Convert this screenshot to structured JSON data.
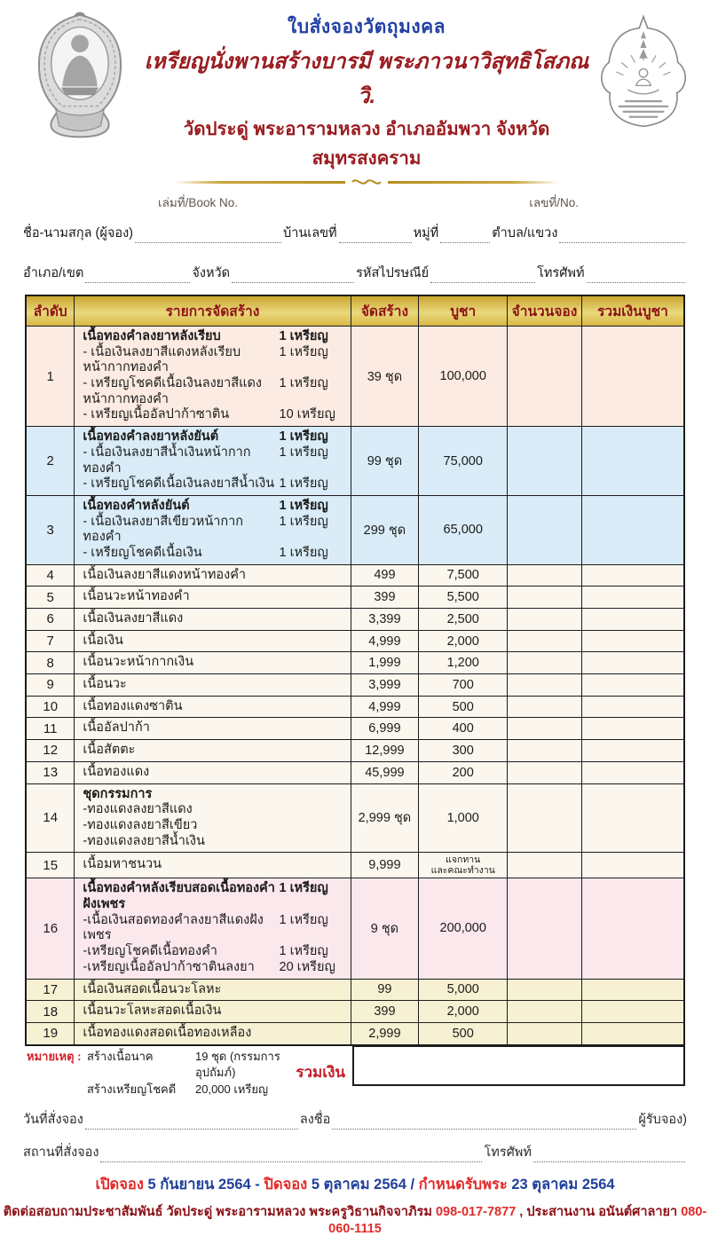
{
  "header": {
    "form_title": "ใบสั่งจองวัตถุมงคล",
    "subtitle1": "เหรียญนั่งพานสร้างบารมี พระภาวนาวิสุทธิโสภณ วิ.",
    "subtitle2": "วัดประดู่ พระอารามหลวง อำเภออัมพวา จังหวัดสมุทรสงคราม",
    "book_no_label": "เล่มที่/Book No.",
    "no_label": "เลขที่/No."
  },
  "applicant": {
    "name_label": "ชื่อ-นามสกุล (ผู้จอง)",
    "house_no_label": "บ้านเลขที่",
    "moo_label": "หมู่ที่",
    "subdistrict_label": "ตำบล/แขวง",
    "district_label": "อำเภอ/เขต",
    "province_label": "จังหวัด",
    "postal_code_label": "รหัสไปรษณีย์",
    "phone_label": "โทรศัพท์"
  },
  "table": {
    "columns": [
      "ลำดับ",
      "รายการจัดสร้าง",
      "จัดสร้าง",
      "บูชา",
      "จำนวนจอง",
      "รวมเงินบูชา"
    ],
    "rows": [
      {
        "no": "1",
        "bg": "pink",
        "title": "เนื้อทองคำลงยาหลังเรียบ",
        "title_qty": "1 เหรียญ",
        "items": [
          {
            "text": "- เนื้อเงินลงยาสีแดงหลังเรียบหน้ากากทองคำ",
            "qty": "1 เหรียญ"
          },
          {
            "text": "- เหรียญโชคดีเนื้อเงินลงยาสีแดงหน้ากากทองคำ",
            "qty": "1 เหรียญ"
          },
          {
            "text": "- เหรียญเนื้ออัลปาก้าซาติน",
            "qty": "10 เหรียญ"
          }
        ],
        "made": "39 ชุด",
        "price": "100,000"
      },
      {
        "no": "2",
        "bg": "blue",
        "title": "เนื้อทองคำลงยาหลังยันต์",
        "title_qty": "1 เหรียญ",
        "items": [
          {
            "text": "- เนื้อเงินลงยาสีน้ำเงินหน้ากากทองคำ",
            "qty": "1 เหรียญ"
          },
          {
            "text": "- เหรียญโชคดีเนื้อเงินลงยาสีน้ำเงิน",
            "qty": "1 เหรียญ"
          }
        ],
        "made": "99 ชุด",
        "price": "75,000"
      },
      {
        "no": "3",
        "bg": "blue",
        "title": "เนื้อทองคำหลังยันต์",
        "title_qty": "1 เหรียญ",
        "items": [
          {
            "text": "- เนื้อเงินลงยาสีเขียวหน้ากากทองคำ",
            "qty": "1 เหรียญ"
          },
          {
            "text": "- เหรียญโชคดีเนื้อเงิน",
            "qty": "1 เหรียญ"
          }
        ],
        "made": "299 ชุด",
        "price": "65,000"
      },
      {
        "no": "4",
        "bg": "cream",
        "desc": "เนื้อเงินลงยาสีแดงหน้าทองคำ",
        "made": "499",
        "price": "7,500"
      },
      {
        "no": "5",
        "bg": "cream",
        "desc": "เนื้อนวะหน้าทองคำ",
        "made": "399",
        "price": "5,500"
      },
      {
        "no": "6",
        "bg": "cream",
        "desc": "เนื้อเงินลงยาสีแดง",
        "made": "3,399",
        "price": "2,500"
      },
      {
        "no": "7",
        "bg": "cream",
        "desc": "เนื้อเงิน",
        "made": "4,999",
        "price": "2,000"
      },
      {
        "no": "8",
        "bg": "cream",
        "desc": "เนื้อนวะหน้ากากเงิน",
        "made": "1,999",
        "price": "1,200"
      },
      {
        "no": "9",
        "bg": "cream",
        "desc": "เนื้อนวะ",
        "made": "3,999",
        "price": "700"
      },
      {
        "no": "10",
        "bg": "cream",
        "desc": "เนื้อทองแดงซาติน",
        "made": "4,999",
        "price": "500"
      },
      {
        "no": "11",
        "bg": "cream",
        "desc": "เนื้ออัลปาก้า",
        "made": "6,999",
        "price": "400"
      },
      {
        "no": "12",
        "bg": "cream",
        "desc": "เนื้อสัตตะ",
        "made": "12,999",
        "price": "300"
      },
      {
        "no": "13",
        "bg": "cream",
        "desc": "เนื้อทองแดง",
        "made": "45,999",
        "price": "200"
      },
      {
        "no": "14",
        "bg": "cream",
        "title": "ชุดกรรมการ",
        "title_qty": "",
        "items": [
          {
            "text": "-ทองแดงลงยาสีแดง",
            "qty": ""
          },
          {
            "text": "-ทองแดงลงยาสีเขียว",
            "qty": ""
          },
          {
            "text": "-ทองแดงลงยาสีน้ำเงิน",
            "qty": ""
          }
        ],
        "made": "2,999 ชุด",
        "price": "1,000"
      },
      {
        "no": "15",
        "bg": "cream",
        "desc": "เนื้อมหาชนวน",
        "made": "9,999",
        "price_lines": [
          "แจกทาน",
          "และคณะทำงาน"
        ]
      },
      {
        "no": "16",
        "bg": "pink2",
        "title": "เนื้อทองคำหลังเรียบสอดเนื้อทองคำฝังเพชร",
        "title_qty": "1 เหรียญ",
        "items": [
          {
            "text": "-เนื้อเงินสอดทองคำลงยาสีแดงฝังเพชร",
            "qty": "1 เหรียญ"
          },
          {
            "text": "-เหรียญโชคดีเนื้อทองคำ",
            "qty": "1 เหรียญ"
          },
          {
            "text": "-เหรียญเนื้ออัลปาก้าซาตินลงยา",
            "qty": "20 เหรียญ"
          }
        ],
        "made": "9 ชุด",
        "price": "200,000"
      },
      {
        "no": "17",
        "bg": "yellow",
        "desc": "เนื้อเงินสอดเนื้อนวะโลหะ",
        "made": "99",
        "price": "5,000"
      },
      {
        "no": "18",
        "bg": "yellow",
        "desc": "เนื้อนวะโลหะสอดเนื้อเงิน",
        "made": "399",
        "price": "2,000"
      },
      {
        "no": "19",
        "bg": "yellow",
        "desc": "เนื้อทองแดงสอดเนื้อทองเหลือง",
        "made": "2,999",
        "price": "500"
      }
    ]
  },
  "summary": {
    "note_label": "หมายเหตุ :",
    "note1_name": "สร้างเนื้อนาค",
    "note1_value": "19 ชุด (กรรมการอุปถัมภ์)",
    "note2_name": "สร้างเหรียญโชคดี",
    "note2_value": "20,000 เหรียญ",
    "total_label": "รวมเงิน"
  },
  "signoff": {
    "order_date_label": "วันที่สั่งจอง",
    "sign_label": "ลงชื่อ",
    "receiver_label": "ผู้รับจอง)",
    "order_place_label": "สถานที่สั่งจอง",
    "phone_label": "โทรศัพท์"
  },
  "schedule": {
    "open_label": "เปิดจอง",
    "open_date": "5 กันยายน 2564",
    "sep1": "-",
    "close_label": "ปิดจอง",
    "close_date": "5 ตุลาคม 2564",
    "sep2": "/",
    "receive_label": "กำหนดรับพระ",
    "receive_date": "23 ตุลาคม 2564"
  },
  "contact": {
    "prefix": "ติดต่อสอบถามประชาสัมพันธ์ วัดประดู่ พระอารามหลวง",
    "name1": "พระครูวิธานกิจจาภิรม",
    "phone1": "098-017-7877",
    "middle": ", ประสานงาน",
    "name2": "อนันต์ศาลายา",
    "phone2": "080-060-1115"
  },
  "colors": {
    "title_blue": "#2140a4",
    "maroon": "#9a1b1f",
    "red": "#e22b2b",
    "gold": "#c9a52e"
  }
}
